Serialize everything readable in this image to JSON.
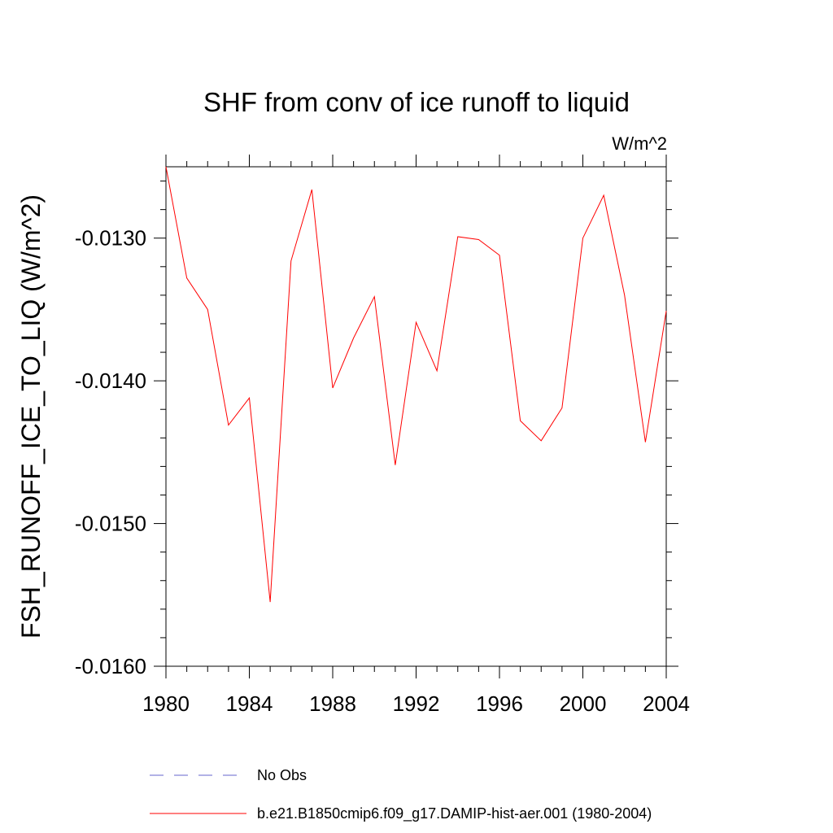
{
  "chart_data": {
    "type": "line",
    "title": "SHF from conv of ice runoff to liquid",
    "units_label": "W/m^2",
    "ylabel": "FSH_RUNOFF_ICE_TO_LIQ  (W/m^2)",
    "xlabel": "",
    "xlim": [
      1980,
      2004
    ],
    "ylim": [
      -0.016,
      -0.0125
    ],
    "x_ticks": [
      1980,
      1984,
      1988,
      1992,
      1996,
      2000,
      2004
    ],
    "x_tick_labels": [
      "1980",
      "1984",
      "1988",
      "1992",
      "1996",
      "2000",
      "2004"
    ],
    "y_ticks": [
      -0.016,
      -0.015,
      -0.014,
      -0.013
    ],
    "y_tick_labels": [
      "-0.0160",
      "-0.0150",
      "-0.0140",
      "-0.0130"
    ],
    "grid": false,
    "legend_position": "bottom",
    "series": [
      {
        "name": "No Obs",
        "color": "#6666cc",
        "dash": "dashed",
        "x": [],
        "values": []
      },
      {
        "name": "b.e21.B1850cmip6.f09_g17.DAMIP-hist-aer.001 (1980-2004)",
        "color": "#ff0000",
        "dash": "solid",
        "x": [
          1980,
          1981,
          1982,
          1983,
          1984,
          1985,
          1986,
          1987,
          1988,
          1989,
          1990,
          1991,
          1992,
          1993,
          1994,
          1995,
          1996,
          1997,
          1998,
          1999,
          2000,
          2001,
          2002,
          2003,
          2004
        ],
        "values": [
          -0.0125,
          -0.01328,
          -0.0135,
          -0.01431,
          -0.01412,
          -0.01555,
          -0.01316,
          -0.01266,
          -0.01405,
          -0.0137,
          -0.01341,
          -0.01459,
          -0.01359,
          -0.01393,
          -0.01299,
          -0.01301,
          -0.01312,
          -0.01428,
          -0.01442,
          -0.01419,
          -0.013,
          -0.0127,
          -0.0134,
          -0.01443,
          -0.01351
        ]
      }
    ]
  }
}
